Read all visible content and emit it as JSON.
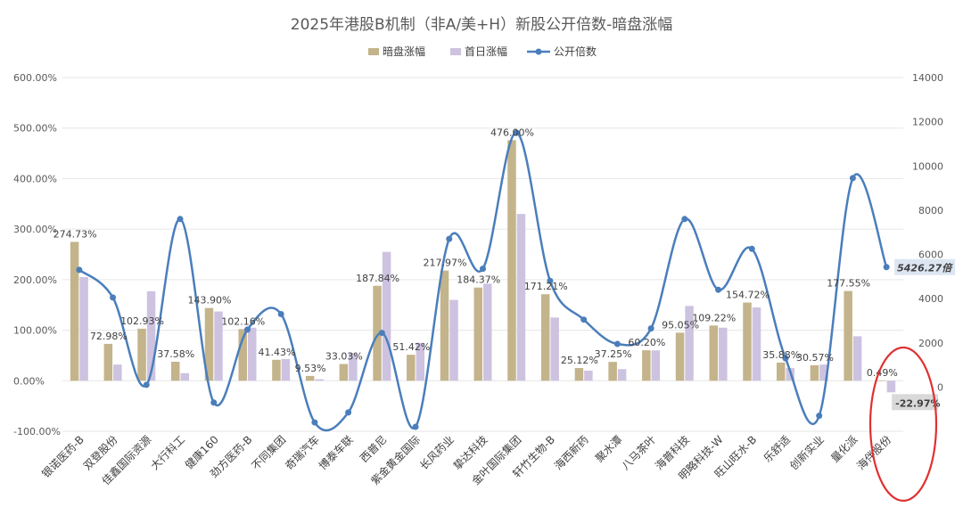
{
  "chart_data": {
    "type": "bar",
    "title": "2025年港股B机制（非A/美+H）新股公开倍数-暗盘涨幅",
    "categories": [
      "银诺医药-B",
      "双登股份",
      "佳鑫国际资源",
      "大行科工",
      "健康160",
      "劲方医药-B",
      "不同集团",
      "奇瑞汽车",
      "博泰车联",
      "西普尼",
      "紫金黄金国际",
      "长风药业",
      "挚达科技",
      "金叶国际集团",
      "轩竹生物-B",
      "海西新药",
      "聚水潭",
      "八马茶叶",
      "海普科技",
      "明略科技-W",
      "旺山旺水-B",
      "乐舒适",
      "创新实业",
      "量化派",
      "海伴股份"
    ],
    "series": [
      {
        "name": "暗盘涨幅",
        "type": "bar",
        "axis": "left",
        "color": "#C4B48B",
        "values": [
          274.73,
          72.98,
          102.93,
          37.58,
          143.9,
          102.16,
          41.43,
          9.53,
          33.03,
          187.84,
          51.42,
          217.97,
          184.37,
          476.0,
          171.21,
          25.12,
          37.25,
          60.2,
          95.05,
          109.22,
          154.72,
          35.88,
          30.57,
          177.55,
          0.49
        ]
      },
      {
        "name": "首日涨幅",
        "type": "bar",
        "axis": "left",
        "color": "#CDC3E0",
        "values": [
          205,
          32,
          177,
          15,
          137,
          105,
          43,
          3,
          55,
          255,
          75,
          160,
          192,
          330,
          125,
          20,
          23,
          60,
          148,
          105,
          145,
          25,
          32,
          88,
          -22.97
        ]
      },
      {
        "name": "公开倍数",
        "type": "line",
        "axis": "right",
        "color": "#4A7EBB",
        "values": [
          5300,
          4050,
          100,
          7600,
          -700,
          2600,
          3300,
          -1600,
          -1150,
          2450,
          -1800,
          6700,
          5350,
          11500,
          4800,
          3050,
          1950,
          2650,
          7600,
          4400,
          6250,
          1300,
          -1300,
          9450,
          5426.27
        ]
      }
    ],
    "data_labels": [
      "274.73%",
      "72.98%",
      "102.93%",
      "37.58%",
      "143.90%",
      "102.16%",
      "41.43%",
      "9.53%",
      "33.03%",
      "187.84%",
      "51.42%",
      "217.97%",
      "184.37%",
      "476.00%",
      "171.21%",
      "25.12%",
      "37.25%",
      "60.20%",
      "95.05%",
      "109.22%",
      "154.72%",
      "35.88%",
      "30.57%",
      "177.55%",
      "0.49%"
    ],
    "callouts": {
      "neg_label": "-22.97%",
      "line_last_label": "5426.27倍"
    },
    "y_left": {
      "ticks": [
        "600.00%",
        "500.00%",
        "400.00%",
        "300.00%",
        "200.00%",
        "100.00%",
        "0.00%",
        "-100.00%"
      ],
      "range": [
        -100,
        600
      ]
    },
    "y_right": {
      "ticks": [
        "14000",
        "12000",
        "10000",
        "8000",
        "6000",
        "4000",
        "2000",
        "0"
      ],
      "range": [
        -2000,
        14000
      ]
    },
    "legend": {
      "position": "top",
      "items": [
        {
          "label": "暗盘涨幅",
          "kind": "bar",
          "color": "#C4B48B"
        },
        {
          "label": "首日涨幅",
          "kind": "bar",
          "color": "#CDC3E0"
        },
        {
          "label": "公开倍数",
          "kind": "line",
          "color": "#4A7EBB"
        }
      ]
    },
    "grid": true,
    "highlight_color": "#E03030",
    "callout_bg": "#DCE6F2",
    "neg_callout_bg": "#D9D9D9"
  }
}
